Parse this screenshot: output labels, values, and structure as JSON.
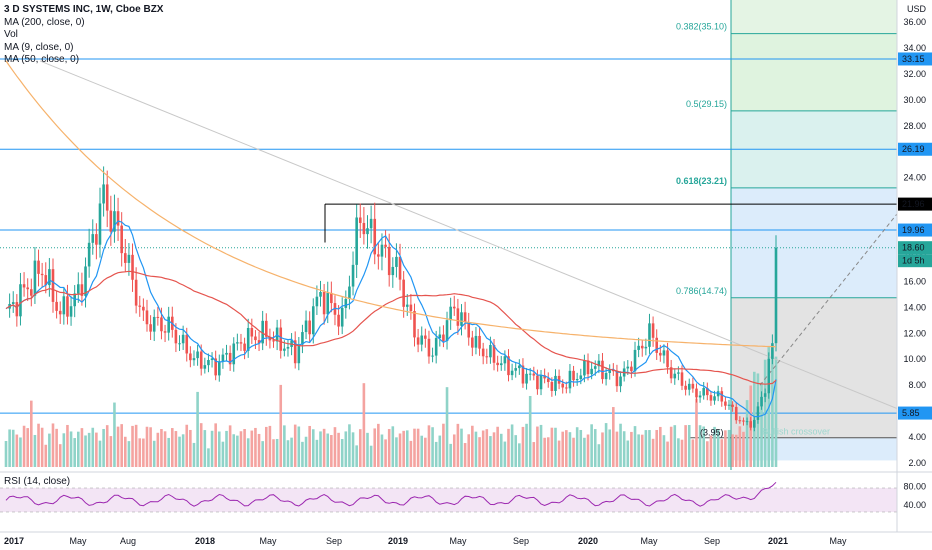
{
  "legend": {
    "title": "3 D SYSTEMS INC, 1W, Cboe BZX",
    "ma200": "MA (200, close, 0)",
    "vol": "Vol",
    "ma9": "MA (9, close, 0)",
    "ma50": "MA (50, close, 0)"
  },
  "rsi_label": "RSI (14, close)",
  "currency": "USD",
  "colors": {
    "up": "#26a69a",
    "down": "#ef5350",
    "ma9": "#2196f3",
    "ma50": "#e5544e",
    "ma200": "#f6b26b",
    "hline": "#2196f3",
    "rsi": "#9c27b0"
  },
  "chart_data": {
    "type": "candlestick",
    "x_ticks": [
      "2017",
      "May",
      "Aug",
      "2018",
      "May",
      "Sep",
      "2019",
      "May",
      "Sep",
      "2020",
      "May",
      "Sep",
      "2021",
      "May"
    ],
    "price_ticks": [
      "36.00",
      "34.00",
      "32.00",
      "30.00",
      "28.00",
      "26.00",
      "24.00",
      "22.00",
      "20.00",
      "18.00",
      "16.00",
      "14.00",
      "12.00",
      "10.00",
      "8.00",
      "6.00",
      "4.00",
      "2.00"
    ],
    "rsi_ticks": [
      "80.00",
      "40.00"
    ],
    "ylim": [
      2,
      37
    ],
    "horizontal_levels": [
      33.15,
      26.19,
      19.96,
      5.85
    ],
    "price_badges": [
      {
        "value": "33.15",
        "kind": "level"
      },
      {
        "value": "26.19",
        "kind": "level"
      },
      {
        "value": "21.96",
        "kind": "black"
      },
      {
        "value": "19.96",
        "kind": "level"
      },
      {
        "value": "18.60",
        "kind": "price"
      },
      {
        "value": "1d 5h",
        "kind": "price"
      },
      {
        "value": "5.85",
        "kind": "level"
      }
    ],
    "fib_levels": [
      {
        "label": "0.382(35.10)",
        "value": 35.1,
        "bold": false
      },
      {
        "label": "0.5(29.15)",
        "value": 29.15,
        "bold": false
      },
      {
        "label": "0.618(23.21)",
        "value": 23.21,
        "bold": true
      },
      {
        "label": "0.786(14.74)",
        "value": 14.74,
        "bold": false
      }
    ],
    "annotations": [
      {
        "text": "(3.95)",
        "value": 3.95
      },
      {
        "text": "Bullish crossover"
      }
    ],
    "last_price": 18.6
  }
}
